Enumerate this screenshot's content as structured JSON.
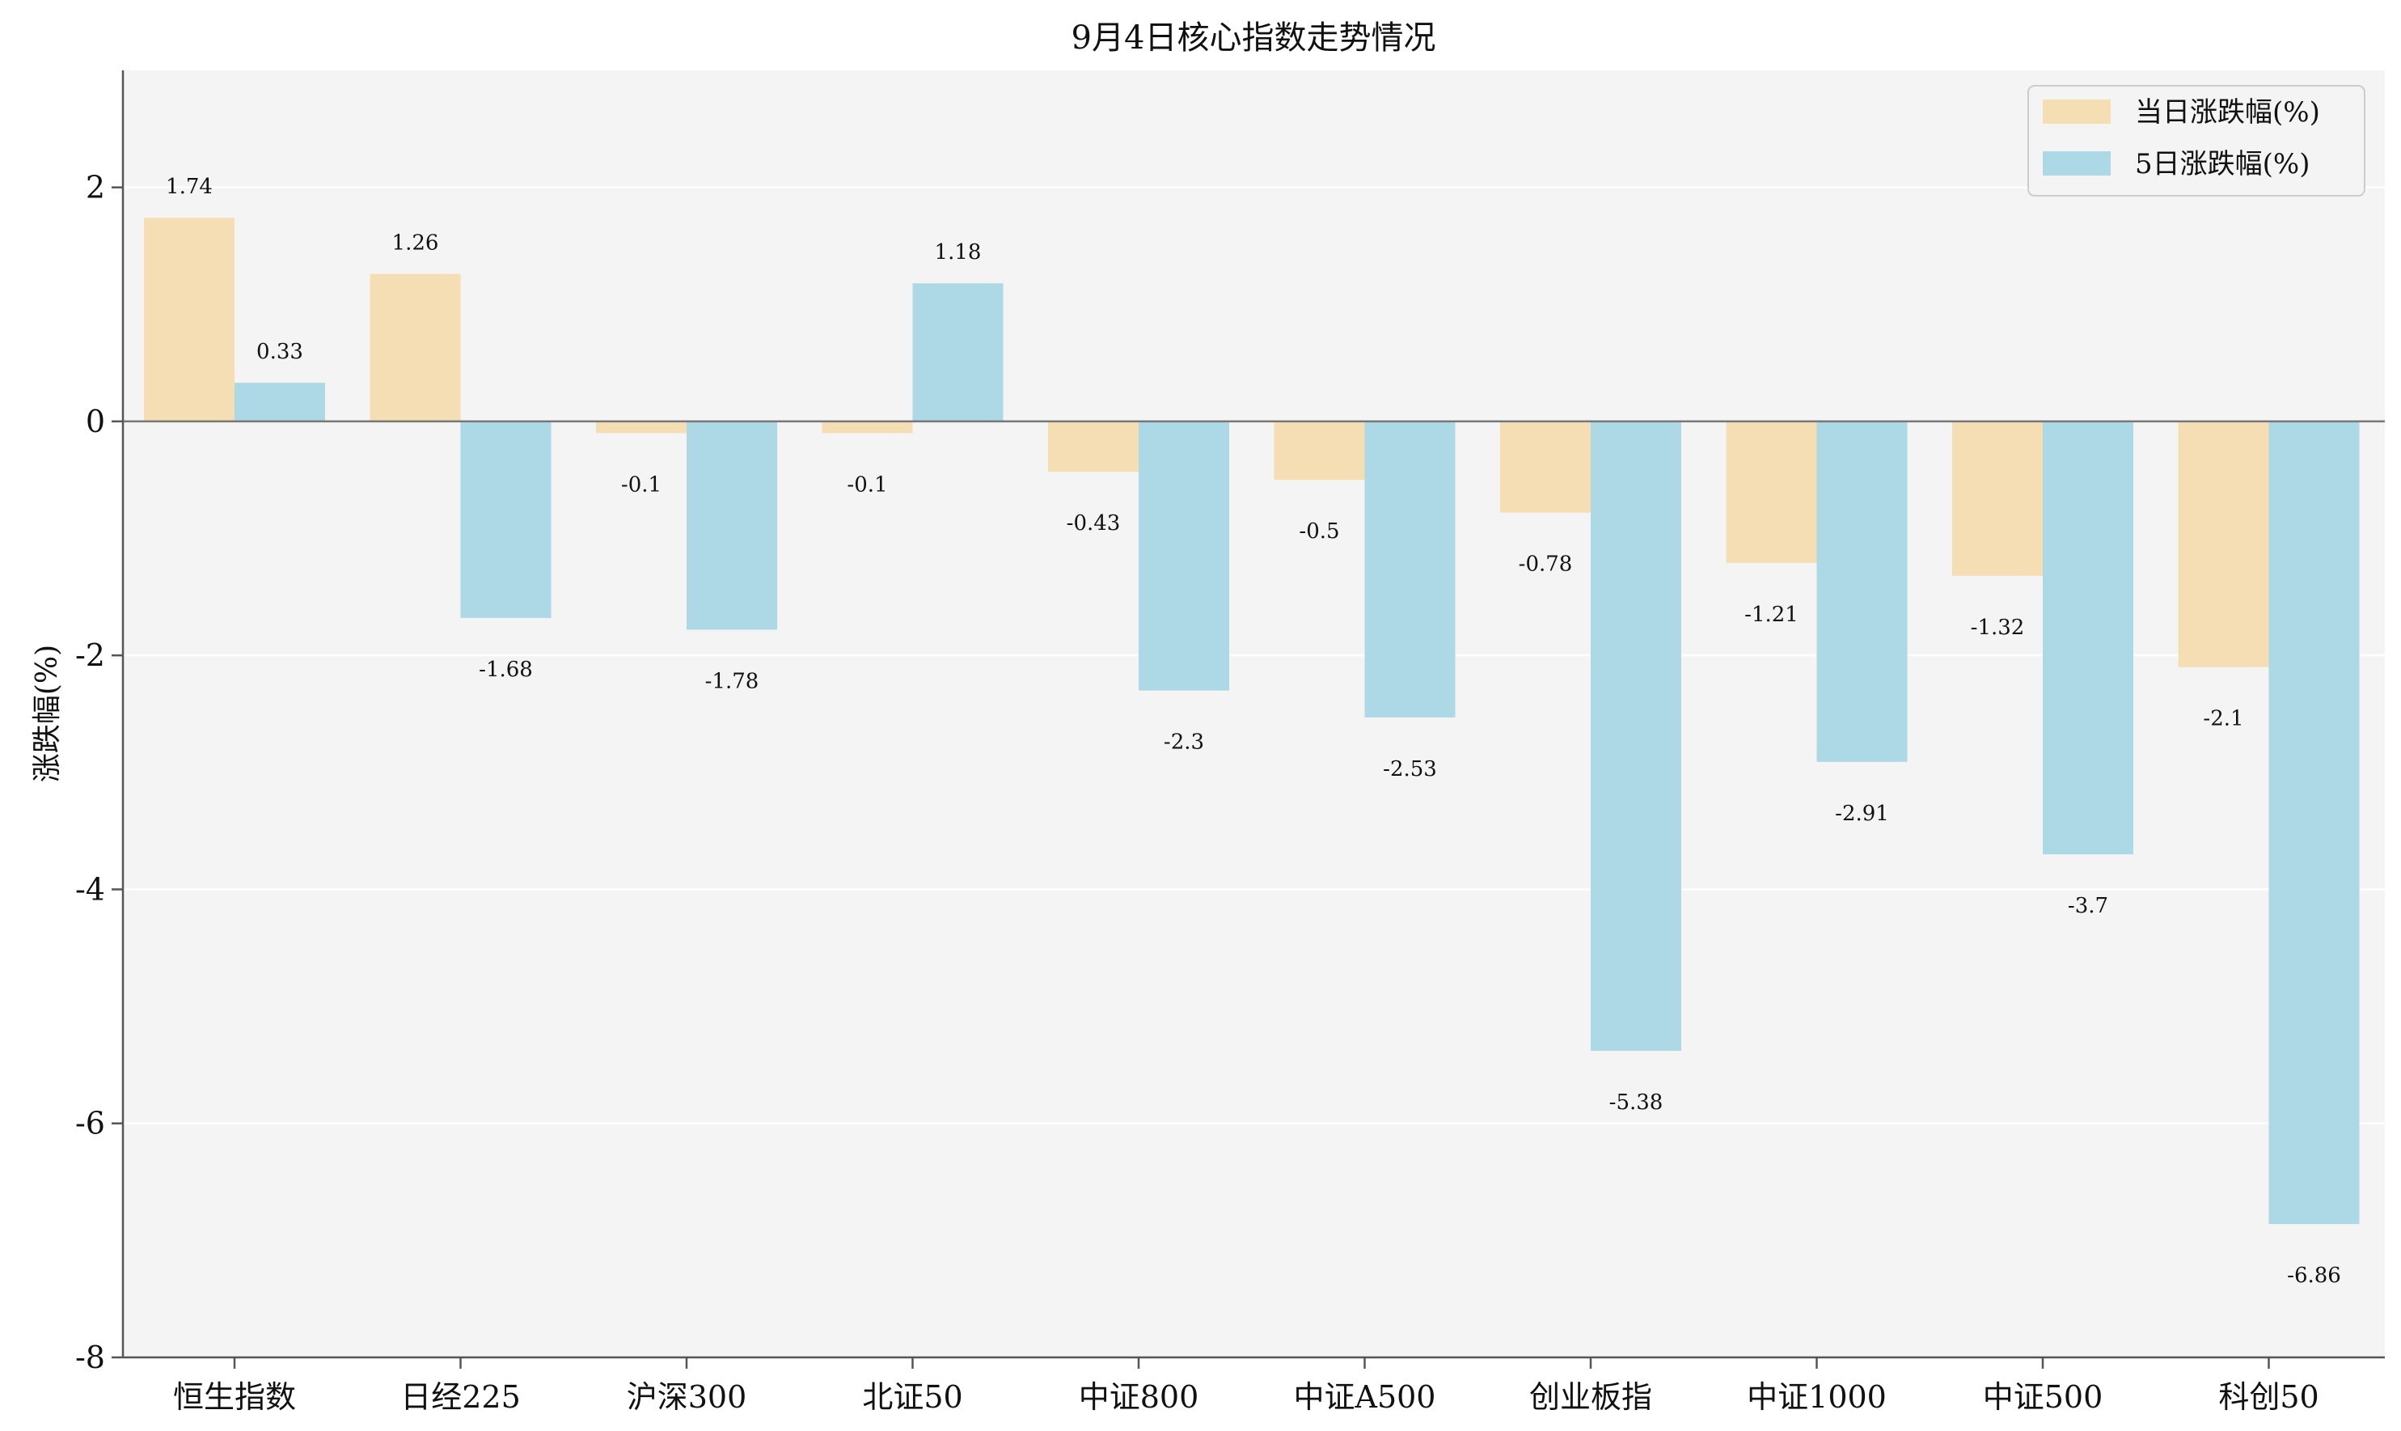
{
  "chart_data": {
    "type": "bar",
    "title": "9月4日核心指数走势情况",
    "xlabel": "",
    "ylabel": "涨跌幅(%)",
    "ylim": [
      -8,
      3
    ],
    "yticks": [
      2,
      0,
      -2,
      -4,
      -6,
      -8
    ],
    "grid": true,
    "legend_position": "top-right",
    "categories": [
      "恒生指数",
      "日经225",
      "沪深300",
      "北证50",
      "中证800",
      "中证A500",
      "创业板指",
      "中证1000",
      "中证500",
      "科创50"
    ],
    "series": [
      {
        "name": "当日涨跌幅(%)",
        "color": "#f5deb3",
        "values": [
          1.74,
          1.26,
          -0.1,
          -0.1,
          -0.43,
          -0.5,
          -0.78,
          -1.21,
          -1.32,
          -2.1
        ]
      },
      {
        "name": "5日涨跌幅(%)",
        "color": "#add8e6",
        "values": [
          0.33,
          -1.68,
          -1.78,
          1.18,
          -2.3,
          -2.53,
          -5.38,
          -2.91,
          -3.7,
          -6.86
        ]
      }
    ]
  }
}
